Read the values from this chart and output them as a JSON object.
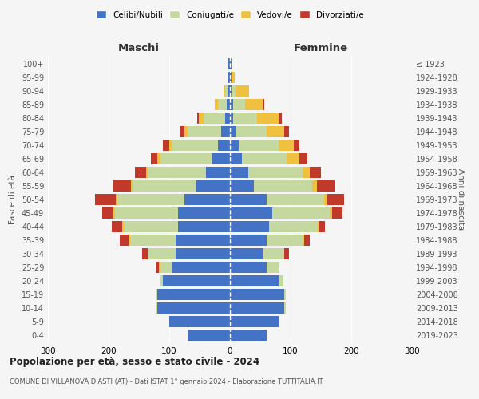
{
  "age_groups": [
    "0-4",
    "5-9",
    "10-14",
    "15-19",
    "20-24",
    "25-29",
    "30-34",
    "35-39",
    "40-44",
    "45-49",
    "50-54",
    "55-59",
    "60-64",
    "65-69",
    "70-74",
    "75-79",
    "80-84",
    "85-89",
    "90-94",
    "95-99",
    "100+"
  ],
  "birth_years": [
    "2019-2023",
    "2014-2018",
    "2009-2013",
    "2004-2008",
    "1999-2003",
    "1994-1998",
    "1989-1993",
    "1984-1988",
    "1979-1983",
    "1974-1978",
    "1969-1973",
    "1964-1968",
    "1959-1963",
    "1954-1958",
    "1949-1953",
    "1944-1948",
    "1939-1943",
    "1934-1938",
    "1929-1933",
    "1924-1928",
    "≤ 1923"
  ],
  "maschi_celibi": [
    70,
    100,
    120,
    120,
    110,
    95,
    90,
    90,
    85,
    85,
    75,
    55,
    40,
    30,
    20,
    15,
    8,
    5,
    3,
    2,
    2
  ],
  "maschi_coniugati": [
    0,
    0,
    2,
    2,
    5,
    20,
    45,
    75,
    90,
    105,
    110,
    105,
    95,
    85,
    75,
    55,
    35,
    15,
    5,
    1,
    0
  ],
  "maschi_vedovi": [
    0,
    0,
    0,
    0,
    0,
    2,
    0,
    2,
    2,
    2,
    3,
    3,
    3,
    5,
    5,
    5,
    8,
    5,
    3,
    1,
    0
  ],
  "maschi_divorziati": [
    0,
    0,
    0,
    0,
    0,
    5,
    10,
    15,
    18,
    18,
    35,
    30,
    18,
    10,
    10,
    8,
    3,
    0,
    0,
    0,
    0
  ],
  "femmine_celibi": [
    60,
    80,
    90,
    90,
    80,
    60,
    55,
    60,
    65,
    70,
    60,
    40,
    30,
    20,
    15,
    10,
    5,
    5,
    3,
    2,
    2
  ],
  "femmine_coniugati": [
    0,
    0,
    2,
    2,
    8,
    20,
    35,
    60,
    80,
    95,
    95,
    95,
    90,
    75,
    65,
    50,
    40,
    20,
    8,
    1,
    0
  ],
  "femmine_vedovi": [
    0,
    0,
    0,
    0,
    0,
    0,
    0,
    2,
    2,
    3,
    5,
    8,
    12,
    20,
    25,
    30,
    35,
    30,
    20,
    5,
    1
  ],
  "femmine_divorziati": [
    0,
    0,
    0,
    0,
    0,
    2,
    8,
    10,
    10,
    18,
    28,
    30,
    18,
    12,
    10,
    8,
    5,
    2,
    0,
    0,
    0
  ],
  "colors": {
    "celibi": "#4472C4",
    "coniugati": "#c5d8a0",
    "vedovi": "#f0c040",
    "divorziati": "#c0392b"
  },
  "legend_labels": [
    "Celibi/Nubili",
    "Coniugati/e",
    "Vedovi/e",
    "Divorziati/e"
  ],
  "title": "Popolazione per età, sesso e stato civile - 2024",
  "subtitle": "COMUNE DI VILLANOVA D'ASTI (AT) - Dati ISTAT 1° gennaio 2024 - Elaborazione TUTTITALIA.IT",
  "xlabel_left": "Maschi",
  "xlabel_right": "Femmine",
  "ylabel_left": "Fasce di età",
  "ylabel_right": "Anni di nascita",
  "xlim": 300,
  "bg_color": "#f5f5f5"
}
